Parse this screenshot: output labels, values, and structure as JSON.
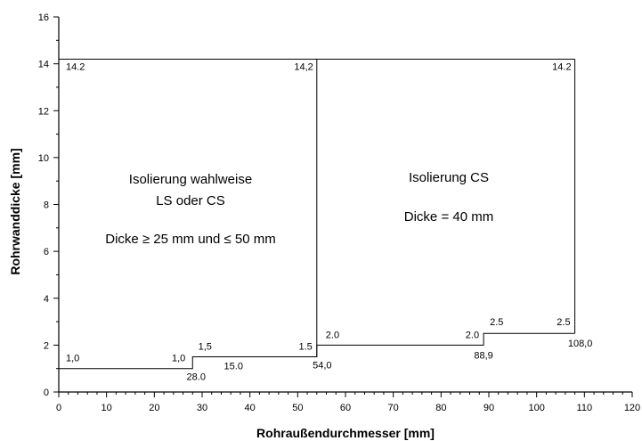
{
  "chart_data": {
    "type": "line",
    "xlabel": "Rohraußendurchmesser [mm]",
    "ylabel": "Rohrwanddicke [mm]",
    "xlim": [
      0,
      120
    ],
    "ylim": [
      0,
      16
    ],
    "x_ticks": [
      "0",
      "10",
      "20",
      "30",
      "40",
      "50",
      "60",
      "70",
      "80",
      "90",
      "100",
      "110",
      "120"
    ],
    "y_ticks": [
      "0",
      "2",
      "4",
      "6",
      "8",
      "10",
      "12",
      "14",
      "16"
    ],
    "grid": false,
    "series": [
      {
        "style": "step",
        "x": [
          0,
          28.0,
          28.0,
          54.0,
          54.0,
          88.9,
          88.9,
          108.0
        ],
        "y": [
          1.0,
          1.0,
          1.5,
          1.5,
          2.0,
          2.0,
          2.5,
          2.5
        ]
      }
    ],
    "regions": [
      {
        "text_lines": [
          "Isolierung wahlweise",
          "LS oder CS",
          "Dicke ≥ 25 mm und ≤ 50 mm"
        ],
        "x_range": [
          0,
          54.0
        ],
        "y_top": 14.2
      },
      {
        "text_lines": [
          "Isolierung CS",
          "Dicke = 40 mm"
        ],
        "x_range": [
          54.0,
          108.0
        ],
        "y_top": 14.2
      }
    ],
    "annotations": [
      {
        "text": "14.2",
        "x": 0,
        "y": 14.2
      },
      {
        "text": "14,2",
        "x": 54.0,
        "y": 14.2
      },
      {
        "text": "14.2",
        "x": 108.0,
        "y": 14.2
      },
      {
        "text": "1,0",
        "x": 0,
        "y": 1.0
      },
      {
        "text": "1,0",
        "x": 28.0,
        "y": 1.0
      },
      {
        "text": "28.0",
        "x": 28.0,
        "y": 1.0
      },
      {
        "text": "1,5",
        "x": 28.0,
        "y": 1.5
      },
      {
        "text": "15.0",
        "x": 28.0,
        "y": 1.5
      },
      {
        "text": "1.5",
        "x": 54.0,
        "y": 1.5
      },
      {
        "text": "54,0",
        "x": 54.0,
        "y": 1.5
      },
      {
        "text": "2.0",
        "x": 54.0,
        "y": 2.0
      },
      {
        "text": "2.0",
        "x": 88.9,
        "y": 2.0
      },
      {
        "text": "88,9",
        "x": 88.9,
        "y": 2.0
      },
      {
        "text": "2.5",
        "x": 88.9,
        "y": 2.5
      },
      {
        "text": "2.5",
        "x": 108.0,
        "y": 2.5
      },
      {
        "text": "108,0",
        "x": 108.0,
        "y": 2.5
      }
    ]
  }
}
